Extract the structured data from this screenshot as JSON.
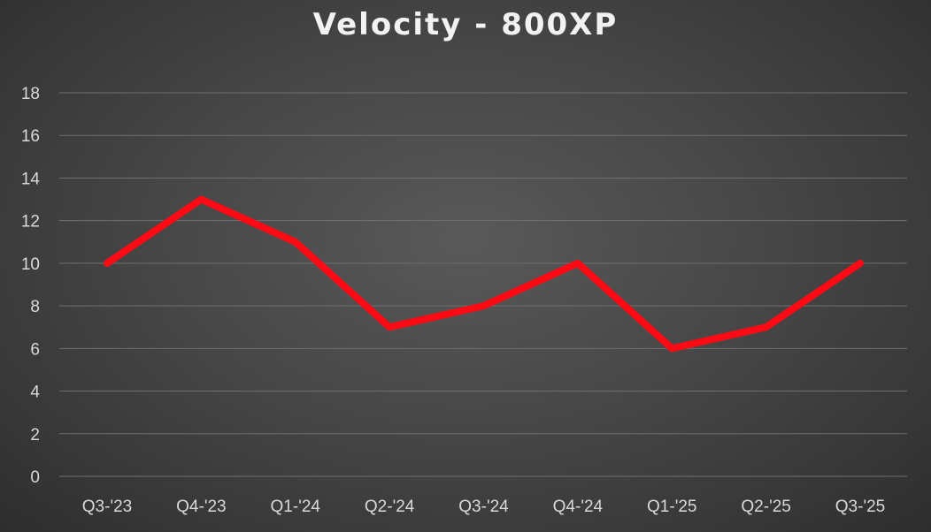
{
  "chart_data": {
    "type": "line",
    "title": "Velocity - 800XP",
    "xlabel": "",
    "ylabel": "",
    "categories": [
      "Q3-'23",
      "Q4-'23",
      "Q1-'24",
      "Q2-'24",
      "Q3-'24",
      "Q4-'24",
      "Q1-'25",
      "Q2-'25",
      "Q3-'25"
    ],
    "series": [
      {
        "values": [
          10,
          13,
          11,
          7,
          8,
          10,
          6,
          7,
          10
        ],
        "color": "#ff0a14"
      }
    ],
    "ylim": [
      0,
      18
    ],
    "yticks": [
      0,
      2,
      4,
      6,
      8,
      10,
      12,
      14,
      16,
      18
    ],
    "grid": true,
    "legend": "none"
  }
}
